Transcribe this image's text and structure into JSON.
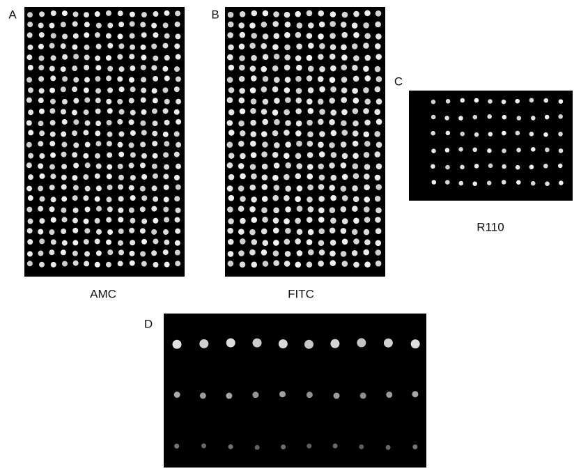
{
  "panels": [
    {
      "label": "A",
      "caption": "AMC"
    },
    {
      "label": "B",
      "caption": "FITC"
    },
    {
      "label": "C",
      "caption": "R110"
    },
    {
      "label": "D"
    }
  ]
}
